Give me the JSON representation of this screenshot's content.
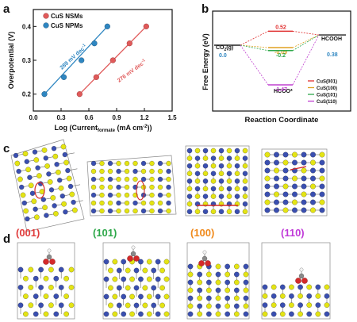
{
  "panels": {
    "a": "a",
    "b": "b",
    "c": "c",
    "d": "d"
  },
  "chart_data": [
    {
      "type": "scatter",
      "ylabel": "Overpotential (V)",
      "xlabel_main": "Log (Current",
      "xlabel_sub": "formate",
      "xlabel_tail": " (mA cm",
      "xlabel_sup": "-2",
      "xlabel_end": "))",
      "xlim": [
        0.0,
        1.5
      ],
      "ylim": [
        0.15,
        0.45
      ],
      "xticks": [
        "0.0",
        "0.3",
        "0.6",
        "0.9",
        "1.2",
        "1.5"
      ],
      "yticks": [
        "0.2",
        "0.3",
        "0.4"
      ],
      "series": [
        {
          "name": "CuS NSMs",
          "color": "#e05a5a",
          "x": [
            0.5,
            0.68,
            0.86,
            1.04,
            1.22
          ],
          "y": [
            0.2,
            0.25,
            0.3,
            0.35,
            0.4
          ],
          "annotation": "276 mV dec",
          "annotation_sup": "-1"
        },
        {
          "name": "CuS NPMs",
          "color": "#2e86c1",
          "x": [
            0.12,
            0.33,
            0.52,
            0.66,
            0.8
          ],
          "y": [
            0.2,
            0.25,
            0.3,
            0.35,
            0.4
          ],
          "annotation": "289 mV dec",
          "annotation_sup": "-1"
        }
      ]
    },
    {
      "type": "line",
      "ylabel": "Free Energy (eV)",
      "xlabel": "Reaction Coordinate",
      "states": {
        "left_main": "CO",
        "left_sub": "2",
        "left_tail": "(g)",
        "right": "HCOOH",
        "middle": "HCOO*"
      },
      "left_value": "0.0",
      "right_value": "0.38",
      "series": [
        {
          "name": "CuS(001)",
          "color": "#e03030",
          "mid": 0.52,
          "label": "0.52"
        },
        {
          "name": "CuS(100)",
          "color": "#e0a020",
          "mid": -0.09,
          "label": "-0.09"
        },
        {
          "name": "CuS(101)",
          "color": "#2ea84a",
          "mid": -0.2,
          "label": "-0.2"
        },
        {
          "name": "CuS(110)",
          "color": "#c040d0",
          "mid": -1.47,
          "label": "-1.47"
        }
      ]
    }
  ],
  "facets": [
    {
      "label": "(001)",
      "color": "#e03c3c"
    },
    {
      "label": "(101)",
      "color": "#2ea84a"
    },
    {
      "label": "(100)",
      "color": "#f08a1c"
    },
    {
      "label": "(110)",
      "color": "#c03ad8"
    }
  ],
  "colors": {
    "cu_atom": "#3a4fb0",
    "s_atom": "#e4e414",
    "o_atom": "#d42a2a",
    "c_atom": "#8a8a8a",
    "h_atom": "#f4f4f4"
  }
}
